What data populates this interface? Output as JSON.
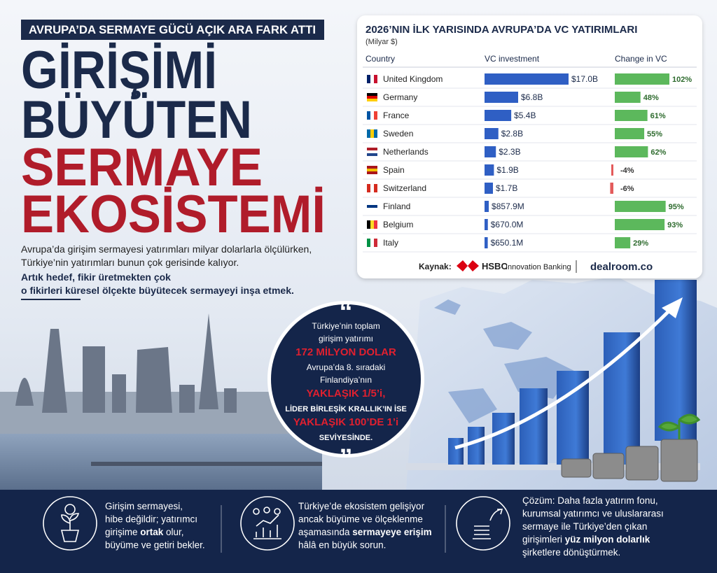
{
  "banner": "AVRUPA’DA SERMAYE GÜCÜ AÇIK ARA FARK ATTI",
  "headline": [
    {
      "text": "GİRİŞİMİ",
      "color": "#1b2a4a"
    },
    {
      "text": "BÜYÜTEN",
      "color": "#1b2a4a"
    },
    {
      "text": "SERMAYE",
      "color": "#b01c2a"
    },
    {
      "text": "EKOSİSTEMİ",
      "color": "#b01c2a"
    }
  ],
  "intro": [
    {
      "text": "Avrupa’da girişim sermayesi yatırımları milyar dolarlarla ölçülürken,",
      "bold": false
    },
    {
      "text": "Türkiye’nin yatırımları bunun çok gerisinde kalıyor.",
      "bold": false
    },
    {
      "text": "Artık hedef, fikir üretmekten çok",
      "bold": true
    },
    {
      "text": "o fikirleri küresel ölçekte büyütecek sermayeyi inşa etmek.",
      "bold": true
    }
  ],
  "chart_data": {
    "type": "bar",
    "title": "2026’NIN İLK YARISINDA AVRUPA’DA VC YATIRIMLARI",
    "subtitle": "(Milyar $)",
    "category_header": "Country",
    "categories": [
      "United Kingdom",
      "Germany",
      "France",
      "Sweden",
      "Netherlands",
      "Spain",
      "Switzerland",
      "Finland",
      "Belgium",
      "Italy"
    ],
    "series": [
      {
        "name": "VC investment",
        "color": "#2f5fc4",
        "values": [
          17000,
          6800,
          5400,
          2800,
          2300,
          1900,
          1700,
          857.9,
          670.0,
          650.1
        ],
        "value_labels": [
          "$17.0B",
          "$6.8B",
          "$5.4B",
          "$2.8B",
          "$2.3B",
          "$1.9B",
          "$1.7B",
          "$857.9M",
          "$670.0M",
          "$650.1M"
        ]
      },
      {
        "name": "Change in VC",
        "color": "#5cb85c",
        "negative_color": "#e35b5b",
        "values": [
          102,
          48,
          61,
          55,
          62,
          -4,
          -6,
          95,
          93,
          29
        ],
        "value_labels": [
          "102%",
          "48%",
          "61%",
          "55%",
          "62%",
          "-4%",
          "-6%",
          "95%",
          "93%",
          "29%"
        ]
      }
    ],
    "source_label": "Kaynak:",
    "sources": [
      "HSBC",
      "Innovation Banking",
      "dealroom.co"
    ]
  },
  "quote": [
    {
      "text": "Türkiye’nin toplam",
      "style": "plain"
    },
    {
      "text": "girişim yatırımı",
      "style": "plain"
    },
    {
      "text": "172 MİLYON DOLAR",
      "style": "red"
    },
    {
      "text": "Avrupa’da 8. sıradaki",
      "style": "plain"
    },
    {
      "text": "Finlandiya’nın",
      "style": "plain"
    },
    {
      "text": "YAKLAŞIK 1/5’i,",
      "style": "red"
    },
    {
      "text": "LİDER BİRLEŞİK KRALLIK’IN İSE",
      "style": "caps"
    },
    {
      "text": "YAKLAŞIK 100’DE 1’i",
      "style": "red"
    },
    {
      "text": "SEVİYESİNDE.",
      "style": "caps"
    }
  ],
  "footer": [
    {
      "lines": [
        [
          "Girişim sermayesi,"
        ],
        [
          "hibe değildir; yatırımcı"
        ],
        [
          "girişime ",
          {
            "text": "ortak",
            "bold": true
          },
          " olur,"
        ],
        [
          "büyüme ve getiri bekler."
        ]
      ]
    },
    {
      "lines": [
        [
          "Türkiye’de ekosistem gelişiyor"
        ],
        [
          "ancak büyüme ve ölçeklenme"
        ],
        [
          "aşamasında ",
          {
            "text": "sermayeye erişim",
            "bold": true
          }
        ],
        [
          "hâlâ en büyük sorun."
        ]
      ]
    },
    {
      "lines": [
        [
          "Çözüm: Daha fazla yatırım fonu,"
        ],
        [
          "kurumsal yatırımcı ve uluslararası"
        ],
        [
          "sermaye ile Türkiye’den çıkan"
        ],
        [
          "girişimleri ",
          {
            "text": "yüz milyon dolarlık",
            "bold": true
          }
        ],
        [
          "şirketlere dönüştürmek."
        ]
      ]
    }
  ]
}
